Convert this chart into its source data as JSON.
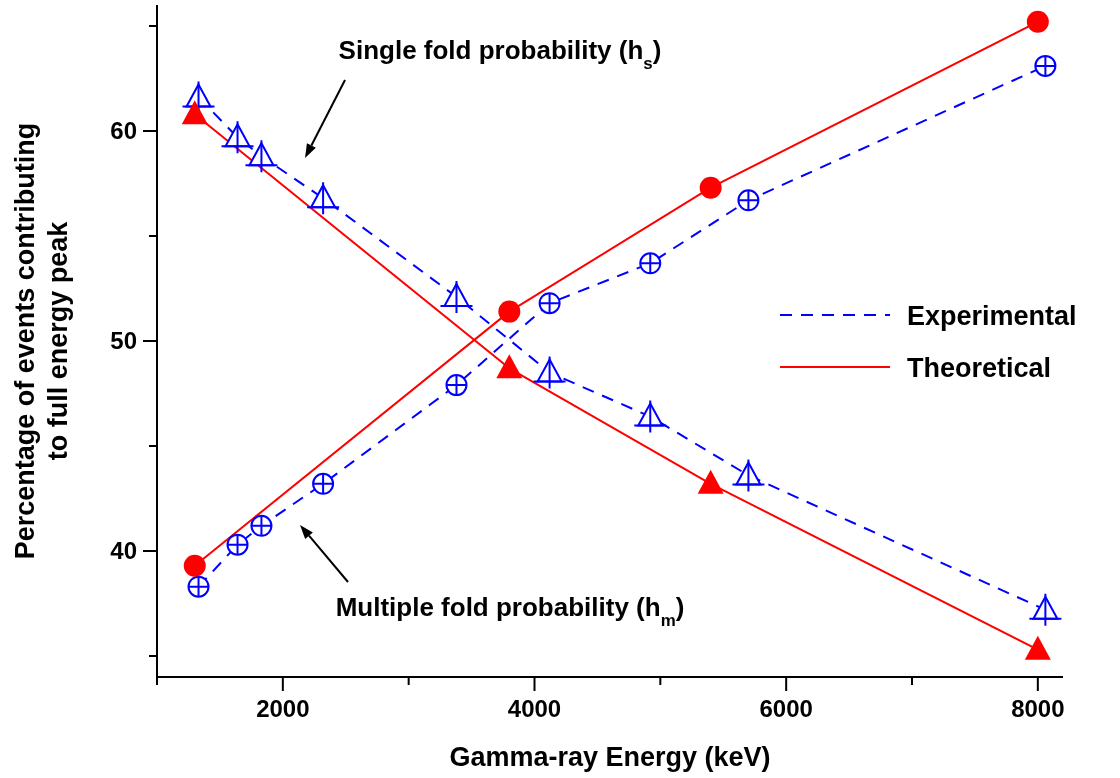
{
  "chart_data": {
    "type": "line",
    "xlabel": "Gamma-ray Energy (keV)",
    "ylabel": "Percentage of events contributing to full energy peak",
    "xlim": [
      1000,
      8200
    ],
    "xticks": [
      {
        "value": 1000,
        "label": null
      },
      2000,
      {
        "value": 3000,
        "label": null
      },
      4000,
      {
        "value": 5000,
        "label": null
      },
      6000,
      {
        "value": 7000,
        "label": null
      },
      8000
    ],
    "ylim": [
      34,
      66
    ],
    "yticks": [
      {
        "value": 35,
        "label": null
      },
      40,
      {
        "value": 45,
        "label": null
      },
      50,
      {
        "value": 55,
        "label": null
      },
      60,
      {
        "value": 65,
        "label": null
      }
    ],
    "legend": "right",
    "annotations": [
      "Single fold probability (h$_{s}$)",
      "Multiple fold probability (h$_{m}$)"
    ],
    "series": [
      {
        "name": "Experimental",
        "color": "#0000ff",
        "line_style": "dashed",
        "marker": "circle",
        "x": [
          1330,
          1640,
          1830,
          2320,
          3380,
          4120,
          4920,
          5700,
          8060
        ],
        "values": [
          38.3,
          40.3,
          41.2,
          43.2,
          47.9,
          51.8,
          53.7,
          56.7,
          63.1
        ]
      },
      {
        "color": "#0000ff",
        "line_style": "dashed",
        "marker": "triangle",
        "x": [
          1330,
          1640,
          1830,
          2320,
          3380,
          4120,
          4920,
          5700,
          8060
        ],
        "values": [
          61.6,
          59.7,
          58.8,
          56.8,
          52.1,
          48.5,
          46.4,
          43.6,
          37.2
        ]
      },
      {
        "name": "Theoretical",
        "color": "#ff0000",
        "line_style": "solid",
        "marker": "circle",
        "x": [
          1300,
          3800,
          5400,
          8000
        ],
        "values": [
          39.3,
          51.4,
          57.3,
          65.2
        ]
      },
      {
        "color": "#ff0000",
        "line_style": "solid",
        "marker": "triangle",
        "x": [
          1300,
          3800,
          5400,
          8000
        ],
        "values": [
          60.8,
          48.7,
          43.2,
          35.3
        ]
      }
    ]
  }
}
